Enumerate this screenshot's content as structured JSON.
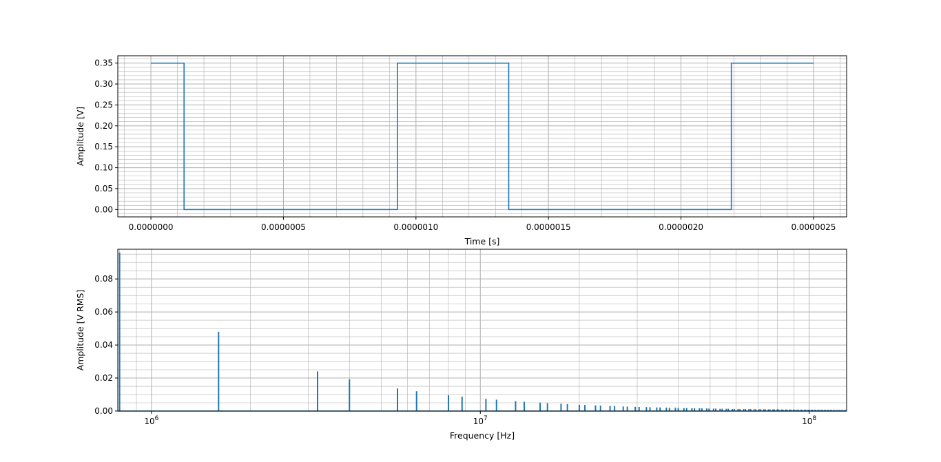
{
  "figure": {
    "line_color": "#1f77b4",
    "grid_color": "#b0b0b0",
    "background": "#ffffff"
  },
  "chart_data": [
    {
      "type": "line",
      "title": "",
      "xlabel": "Time [s]",
      "ylabel": "Amplitude [V]",
      "xscale": "linear",
      "yscale": "linear",
      "xlim": [
        -1.25e-07,
        2.625e-06
      ],
      "ylim": [
        -0.0175,
        0.3675
      ],
      "grid": {
        "major": true,
        "minor": true
      },
      "legend": "none",
      "xticks": [
        {
          "value": 0.0,
          "label": "0.0000000"
        },
        {
          "value": 5e-07,
          "label": "0.0000005"
        },
        {
          "value": 1e-06,
          "label": "0.0000010"
        },
        {
          "value": 1.5e-06,
          "label": "0.0000015"
        },
        {
          "value": 2e-06,
          "label": "0.0000020"
        },
        {
          "value": 2.5e-06,
          "label": "0.0000025"
        }
      ],
      "yticks": [
        {
          "value": 0.0,
          "label": "0.00"
        },
        {
          "value": 0.05,
          "label": "0.05"
        },
        {
          "value": 0.1,
          "label": "0.10"
        },
        {
          "value": 0.15,
          "label": "0.15"
        },
        {
          "value": 0.2,
          "label": "0.20"
        },
        {
          "value": 0.25,
          "label": "0.25"
        },
        {
          "value": 0.3,
          "label": "0.30"
        },
        {
          "value": 0.35,
          "label": "0.35"
        }
      ],
      "series": [
        {
          "x": [
            0.0,
            1.25e-07,
            1.25e-07,
            9.3e-07,
            9.3e-07,
            1.35e-06,
            1.35e-06,
            2.19e-06,
            2.19e-06,
            2.5e-06
          ],
          "y": [
            0.35,
            0.35,
            0.0,
            0.0,
            0.35,
            0.35,
            0.0,
            0.0,
            0.35,
            0.35
          ]
        }
      ]
    },
    {
      "type": "bar",
      "title": "",
      "xlabel": "Frequency [Hz]",
      "ylabel": "Amplitude [V RMS]",
      "xscale": "log",
      "yscale": "linear",
      "xlim": [
        790000,
        130000000
      ],
      "ylim": [
        0.0,
        0.098
      ],
      "grid": {
        "major": true,
        "minor": true
      },
      "legend": "none",
      "xticks": [
        {
          "value": 1000000,
          "base": "10",
          "exp": "6"
        },
        {
          "value": 10000000,
          "base": "10",
          "exp": "7"
        },
        {
          "value": 100000000,
          "base": "10",
          "exp": "8"
        }
      ],
      "yticks": [
        {
          "value": 0.0,
          "label": "0.00"
        },
        {
          "value": 0.02,
          "label": "0.02"
        },
        {
          "value": 0.04,
          "label": "0.04"
        },
        {
          "value": 0.06,
          "label": "0.06"
        },
        {
          "value": 0.08,
          "label": "0.08"
        }
      ],
      "series": [
        {
          "x": [
            800000,
            1600000,
            3200000,
            4000000,
            5600000,
            6400000,
            8000000,
            8800000,
            10400000,
            11200000,
            12800000,
            13600000,
            15200000,
            16000000,
            17600000,
            18400000,
            20000000,
            20800000,
            22400000,
            23200000,
            24800000,
            25600000,
            27200000,
            28000000,
            29600000,
            30400000,
            32000000,
            32800000,
            34400000,
            35200000,
            36800000,
            37600000,
            39200000,
            40000000,
            41600000,
            42400000,
            44000000,
            44800000,
            46400000,
            47200000,
            48800000,
            49600000,
            51200000,
            52000000,
            53600000,
            54400000,
            56000000,
            56800000,
            58400000,
            59200000,
            60800000,
            61600000,
            63200000,
            64000000,
            65600000,
            66400000,
            68000000,
            68800000,
            70400000,
            71200000,
            72800000,
            73600000,
            75200000,
            76000000,
            77600000,
            78400000,
            80000000,
            80800000,
            82400000,
            83200000,
            84800000,
            85600000,
            87200000,
            88000000,
            89600000,
            90400000,
            92000000,
            92800000,
            94400000,
            95200000,
            96800000,
            97600000,
            99200000,
            100000000,
            101600000,
            102400000,
            104000000,
            104800000,
            106400000,
            107200000,
            108800000,
            109600000,
            111200000,
            112000000,
            113600000,
            114400000,
            116000000,
            116800000,
            118400000,
            119200000,
            120800000,
            121600000,
            123200000,
            124000000,
            125600000,
            126400000,
            128000000,
            128800000
          ],
          "y": [
            0.096,
            0.048,
            0.024,
            0.0192,
            0.0137,
            0.012,
            0.0096,
            0.0087,
            0.0074,
            0.0069,
            0.006,
            0.0056,
            0.0051,
            0.0048,
            0.0044,
            0.0042,
            0.0038,
            0.0037,
            0.0034,
            0.0033,
            0.0031,
            0.003,
            0.0028,
            0.0027,
            0.0026,
            0.0025,
            0.0024,
            0.0023,
            0.0022,
            0.0022,
            0.0021,
            0.002,
            0.002,
            0.0019,
            0.0018,
            0.0018,
            0.0017,
            0.0017,
            0.0017,
            0.0016,
            0.0016,
            0.0015,
            0.0015,
            0.0015,
            0.0014,
            0.0014,
            0.0014,
            0.0014,
            0.0013,
            0.0013,
            0.0013,
            0.0012,
            0.0012,
            0.0012,
            0.0012,
            0.0012,
            0.0011,
            0.0011,
            0.0011,
            0.0011,
            0.0011,
            0.001,
            0.001,
            0.001,
            0.001,
            0.001,
            0.001,
            0.001,
            0.0009,
            0.0009,
            0.0009,
            0.0009,
            0.0009,
            0.0009,
            0.0009,
            0.0008,
            0.0008,
            0.0008,
            0.0008,
            0.0008,
            0.0008,
            0.0008,
            0.0008,
            0.0008,
            0.0008,
            0.0008,
            0.0007,
            0.0007,
            0.0007,
            0.0007,
            0.0007,
            0.0007,
            0.0007,
            0.0007,
            0.0007,
            0.0007,
            0.0007,
            0.0007,
            0.0006,
            0.0006,
            0.0006,
            0.0006,
            0.0006,
            0.0006,
            0.0006,
            0.0006,
            0.0006,
            0.0006
          ]
        }
      ]
    }
  ]
}
